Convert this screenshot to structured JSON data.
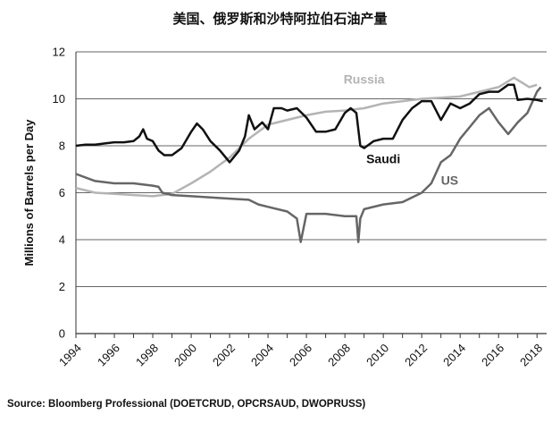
{
  "title": "美国、俄罗斯和沙特阿拉伯石油产量",
  "source": "Source:  Bloomberg Professional (DOETCRUD, OPCRSAUD, DWOPRUSS)",
  "colors": {
    "saudi": "#111111",
    "us": "#666666",
    "russia": "#b4b4b4",
    "grid": "#666666",
    "axis": "#333333"
  },
  "chart_data": {
    "type": "line",
    "ylabel": "Millions of Barrels per Day",
    "xlabel": "",
    "xlim": [
      1994,
      2018.5
    ],
    "ylim": [
      0,
      12
    ],
    "x_ticks": [
      "1994",
      "1996",
      "1998",
      "2000",
      "2002",
      "2004",
      "2006",
      "2008",
      "2010",
      "2012",
      "2014",
      "2016",
      "2018"
    ],
    "y_ticks": [
      "0",
      "2",
      "4",
      "6",
      "8",
      "10",
      "12"
    ],
    "grid": "horizontal",
    "series": [
      {
        "name": "Saudi",
        "color": "#111111",
        "points": [
          [
            1994.0,
            8.0
          ],
          [
            1994.5,
            8.05
          ],
          [
            1995.0,
            8.05
          ],
          [
            1995.5,
            8.1
          ],
          [
            1996.0,
            8.15
          ],
          [
            1996.5,
            8.15
          ],
          [
            1997.0,
            8.2
          ],
          [
            1997.3,
            8.4
          ],
          [
            1997.5,
            8.7
          ],
          [
            1997.7,
            8.3
          ],
          [
            1998.0,
            8.2
          ],
          [
            1998.3,
            7.8
          ],
          [
            1998.6,
            7.6
          ],
          [
            1999.0,
            7.6
          ],
          [
            1999.5,
            7.9
          ],
          [
            2000.0,
            8.6
          ],
          [
            2000.3,
            8.95
          ],
          [
            2000.6,
            8.7
          ],
          [
            2001.0,
            8.2
          ],
          [
            2001.5,
            7.8
          ],
          [
            2002.0,
            7.3
          ],
          [
            2002.5,
            7.8
          ],
          [
            2002.8,
            8.4
          ],
          [
            2003.0,
            9.3
          ],
          [
            2003.3,
            8.7
          ],
          [
            2003.7,
            9.0
          ],
          [
            2004.0,
            8.7
          ],
          [
            2004.3,
            9.6
          ],
          [
            2004.7,
            9.6
          ],
          [
            2005.0,
            9.5
          ],
          [
            2005.5,
            9.6
          ],
          [
            2006.0,
            9.2
          ],
          [
            2006.5,
            8.6
          ],
          [
            2007.0,
            8.6
          ],
          [
            2007.5,
            8.7
          ],
          [
            2008.0,
            9.4
          ],
          [
            2008.3,
            9.6
          ],
          [
            2008.6,
            9.4
          ],
          [
            2008.8,
            8.0
          ],
          [
            2009.0,
            7.9
          ],
          [
            2009.5,
            8.2
          ],
          [
            2010.0,
            8.3
          ],
          [
            2010.5,
            8.3
          ],
          [
            2011.0,
            9.1
          ],
          [
            2011.5,
            9.6
          ],
          [
            2012.0,
            9.9
          ],
          [
            2012.5,
            9.9
          ],
          [
            2013.0,
            9.1
          ],
          [
            2013.5,
            9.8
          ],
          [
            2014.0,
            9.6
          ],
          [
            2014.5,
            9.8
          ],
          [
            2015.0,
            10.2
          ],
          [
            2015.5,
            10.3
          ],
          [
            2016.0,
            10.3
          ],
          [
            2016.5,
            10.6
          ],
          [
            2016.8,
            10.6
          ],
          [
            2017.0,
            9.95
          ],
          [
            2017.5,
            10.0
          ],
          [
            2018.0,
            9.95
          ],
          [
            2018.3,
            9.9
          ]
        ]
      },
      {
        "name": "Russia",
        "color": "#b4b4b4",
        "points": [
          [
            1994.0,
            6.2
          ],
          [
            1995.0,
            6.0
          ],
          [
            1996.0,
            5.95
          ],
          [
            1997.0,
            5.9
          ],
          [
            1998.0,
            5.85
          ],
          [
            1999.0,
            5.95
          ],
          [
            2000.0,
            6.4
          ],
          [
            2001.0,
            6.9
          ],
          [
            2002.0,
            7.5
          ],
          [
            2003.0,
            8.3
          ],
          [
            2004.0,
            8.9
          ],
          [
            2005.0,
            9.1
          ],
          [
            2006.0,
            9.3
          ],
          [
            2007.0,
            9.45
          ],
          [
            2008.0,
            9.5
          ],
          [
            2009.0,
            9.6
          ],
          [
            2010.0,
            9.8
          ],
          [
            2011.0,
            9.9
          ],
          [
            2012.0,
            10.0
          ],
          [
            2013.0,
            10.05
          ],
          [
            2014.0,
            10.1
          ],
          [
            2015.0,
            10.3
          ],
          [
            2016.0,
            10.5
          ],
          [
            2016.8,
            10.9
          ],
          [
            2017.2,
            10.7
          ],
          [
            2017.6,
            10.5
          ],
          [
            2018.0,
            10.6
          ]
        ]
      },
      {
        "name": "US",
        "color": "#666666",
        "points": [
          [
            1994.0,
            6.8
          ],
          [
            1995.0,
            6.5
          ],
          [
            1996.0,
            6.4
          ],
          [
            1997.0,
            6.4
          ],
          [
            1998.0,
            6.3
          ],
          [
            1998.3,
            6.25
          ],
          [
            1998.5,
            6.0
          ],
          [
            1999.0,
            5.9
          ],
          [
            2000.0,
            5.85
          ],
          [
            2001.0,
            5.8
          ],
          [
            2002.0,
            5.75
          ],
          [
            2003.0,
            5.7
          ],
          [
            2003.5,
            5.5
          ],
          [
            2004.0,
            5.4
          ],
          [
            2005.0,
            5.2
          ],
          [
            2005.5,
            4.9
          ],
          [
            2005.7,
            3.9
          ],
          [
            2005.9,
            4.7
          ],
          [
            2006.0,
            5.1
          ],
          [
            2007.0,
            5.1
          ],
          [
            2008.0,
            5.0
          ],
          [
            2008.6,
            5.0
          ],
          [
            2008.7,
            3.9
          ],
          [
            2008.8,
            4.9
          ],
          [
            2009.0,
            5.3
          ],
          [
            2010.0,
            5.5
          ],
          [
            2011.0,
            5.6
          ],
          [
            2012.0,
            6.0
          ],
          [
            2012.5,
            6.4
          ],
          [
            2013.0,
            7.3
          ],
          [
            2013.5,
            7.6
          ],
          [
            2014.0,
            8.3
          ],
          [
            2014.5,
            8.8
          ],
          [
            2015.0,
            9.3
          ],
          [
            2015.5,
            9.6
          ],
          [
            2016.0,
            9.0
          ],
          [
            2016.5,
            8.5
          ],
          [
            2017.0,
            9.0
          ],
          [
            2017.5,
            9.4
          ],
          [
            2018.0,
            10.3
          ],
          [
            2018.2,
            10.5
          ]
        ]
      }
    ]
  }
}
